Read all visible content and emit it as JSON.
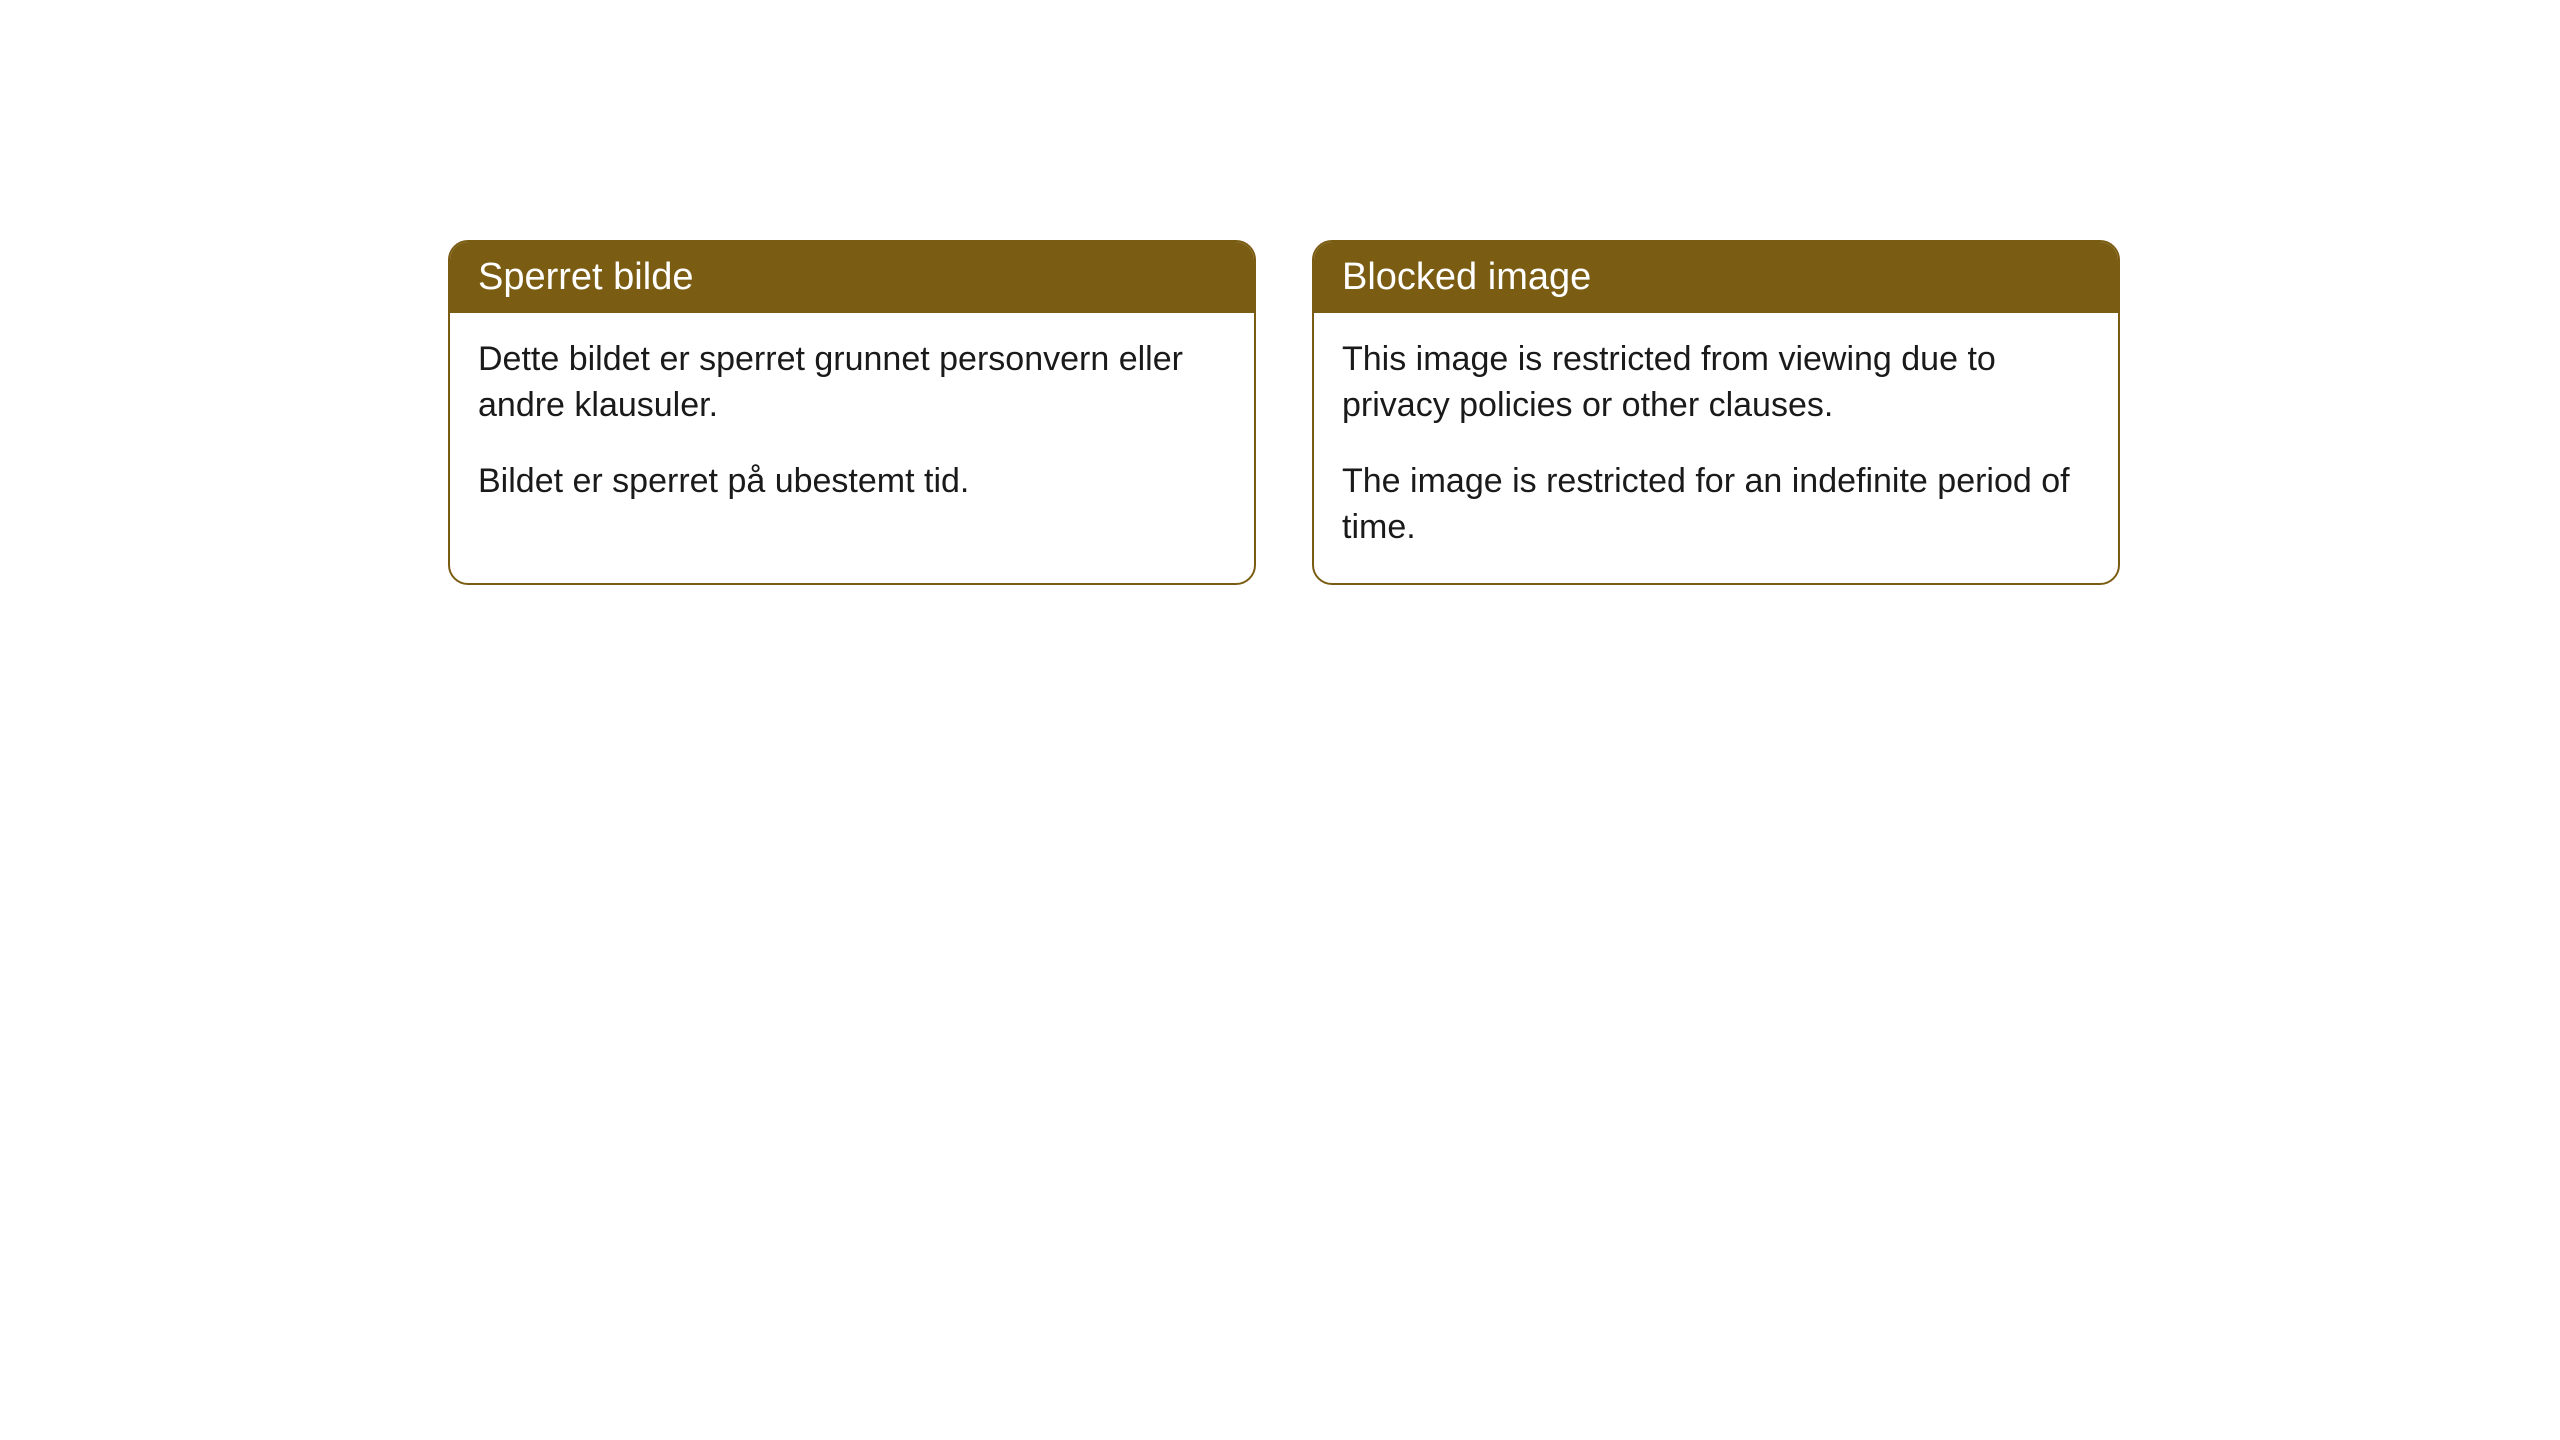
{
  "cards": [
    {
      "title": "Sperret bilde",
      "para1": "Dette bildet er sperret grunnet personvern eller andre klausuler.",
      "para2": "Bildet er sperret på ubestemt tid."
    },
    {
      "title": "Blocked image",
      "para1": "This image is restricted from viewing due to privacy policies or other clauses.",
      "para2": "The image is restricted for an indefinite period of time."
    }
  ],
  "colors": {
    "header_bg": "#7a5c13",
    "header_text": "#ffffff",
    "border": "#7a5c13",
    "body_bg": "#ffffff",
    "body_text": "#1a1a1a",
    "page_bg": "#ffffff"
  }
}
